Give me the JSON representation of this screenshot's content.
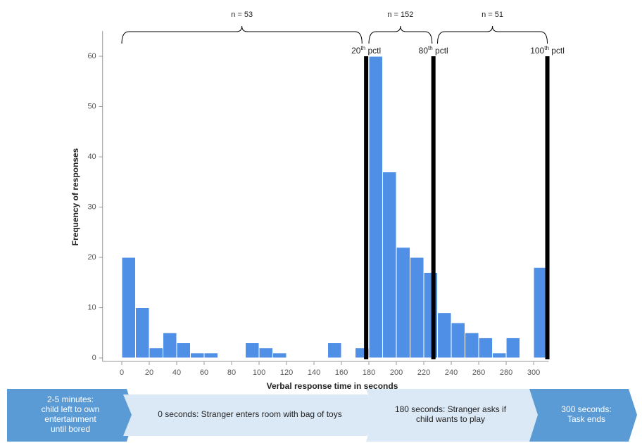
{
  "chart_data": {
    "type": "histogram",
    "xlabel": "Verbal response time in seconds",
    "ylabel": "Frequency of responses",
    "bins": [
      0,
      10,
      20,
      30,
      40,
      50,
      60,
      70,
      80,
      90,
      100,
      110,
      120,
      130,
      140,
      150,
      160,
      170,
      180,
      190,
      200,
      210,
      220,
      230,
      240,
      250,
      260,
      270,
      280,
      290,
      300,
      310
    ],
    "values": [
      20,
      10,
      2,
      5,
      3,
      1,
      1,
      0,
      0,
      3,
      2,
      1,
      0,
      0,
      0,
      3,
      0,
      2,
      60,
      37,
      22,
      20,
      17,
      9,
      7,
      5,
      4,
      1,
      4,
      0,
      18
    ],
    "color": "#4f8fe6",
    "xlim": [
      -14,
      311
    ],
    "xticks": [
      0,
      20,
      40,
      60,
      80,
      100,
      120,
      140,
      160,
      180,
      200,
      220,
      240,
      260,
      280,
      300
    ],
    "ylim": [
      -0.7,
      65
    ],
    "yticks": [
      0,
      10,
      20,
      30,
      40,
      50,
      60
    ],
    "percentiles": [
      {
        "x": 178,
        "rank": "20",
        "ordinal": "th",
        "text": " pctl"
      },
      {
        "x": 227,
        "rank": "80",
        "ordinal": "th",
        "text": " pctl"
      },
      {
        "x": 310,
        "rank": "100",
        "ordinal": "th",
        "text": " pctl"
      }
    ],
    "braces": [
      {
        "range": [
          0,
          175
        ],
        "label": "n = 53"
      },
      {
        "range": [
          180,
          226
        ],
        "label": "n = 152"
      },
      {
        "range": [
          230,
          310
        ],
        "label": "n = 51"
      }
    ]
  },
  "timeline": [
    "2-5 minutes:|child left to own|entertainment|until bored",
    "0 seconds: Stranger enters room with bag of toys",
    "180 seconds: Stranger asks if|child wants to play",
    "300 seconds:|Task ends"
  ]
}
